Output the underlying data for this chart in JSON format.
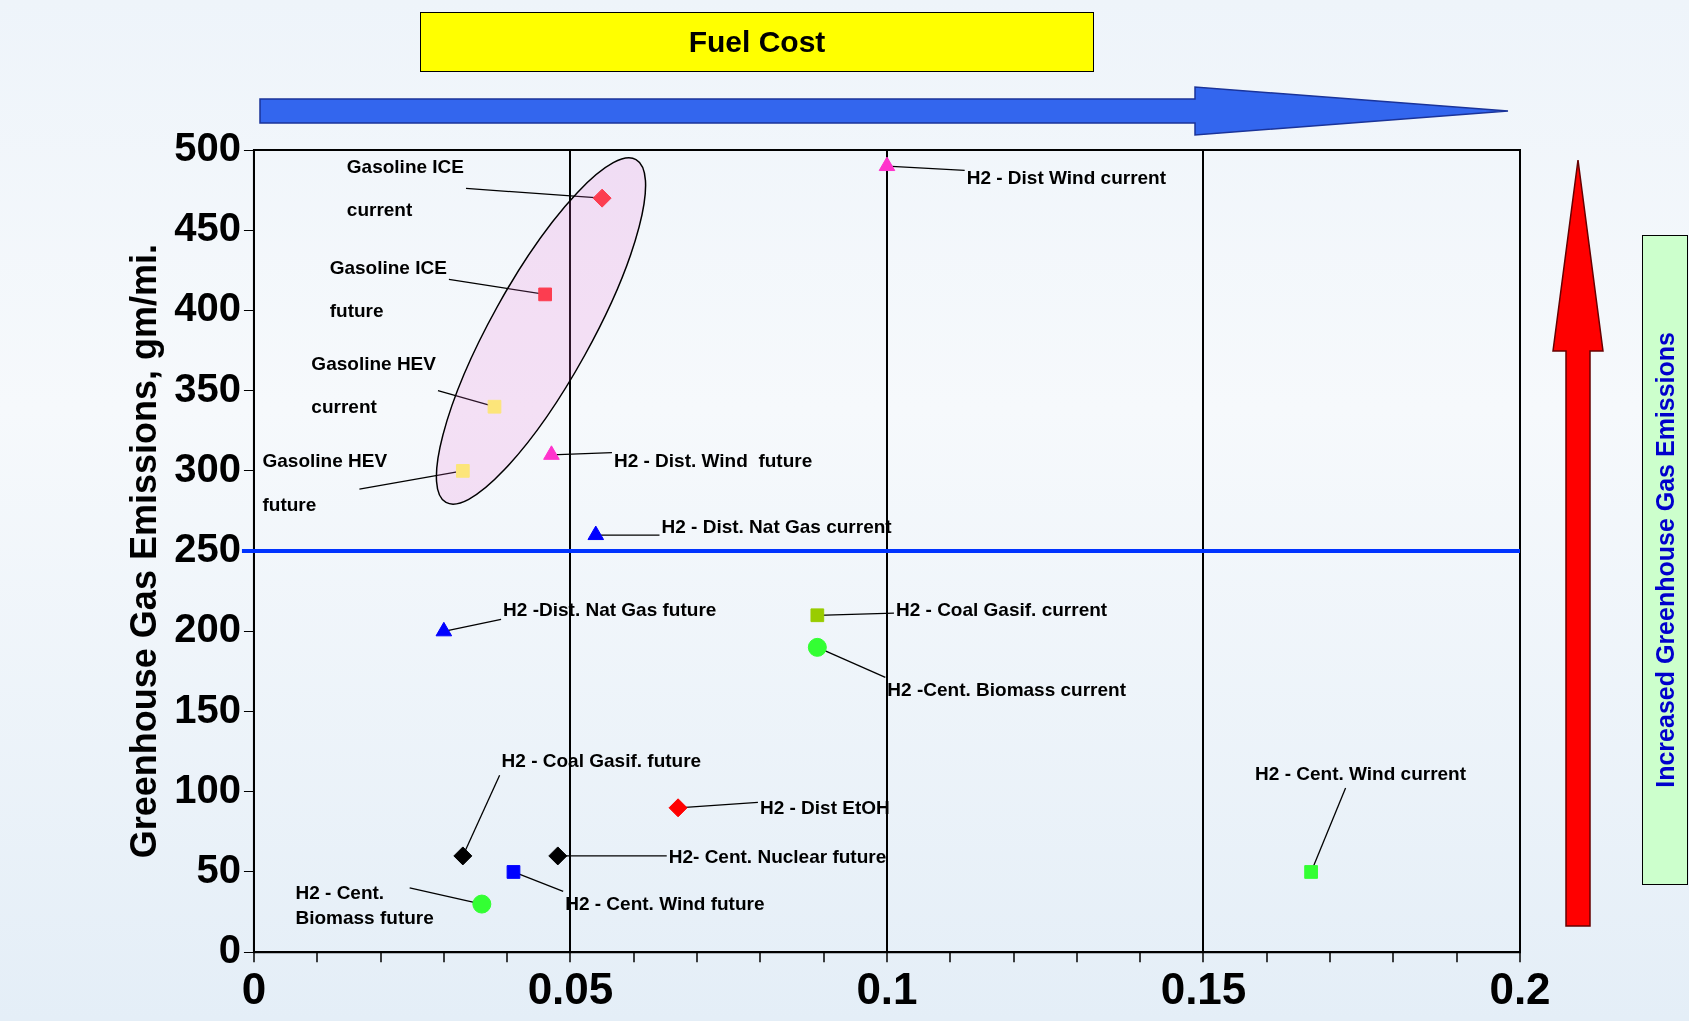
{
  "chart_data": {
    "type": "scatter",
    "ylabel": "Greenhouse Gas Emissions, gm/mi.",
    "xlim": [
      0,
      0.2
    ],
    "ylim": [
      0,
      500
    ],
    "xticks": [
      0,
      {
        "value": 0.01,
        "label": null
      },
      {
        "value": 0.02,
        "label": null
      },
      {
        "value": 0.03,
        "label": null
      },
      {
        "value": 0.04,
        "label": null
      },
      0.05,
      {
        "value": 0.06,
        "label": null
      },
      {
        "value": 0.07,
        "label": null
      },
      {
        "value": 0.08,
        "label": null
      },
      {
        "value": 0.09,
        "label": null
      },
      0.1,
      {
        "value": 0.11,
        "label": null
      },
      {
        "value": 0.12,
        "label": null
      },
      {
        "value": 0.13,
        "label": null
      },
      {
        "value": 0.14,
        "label": null
      },
      0.15,
      {
        "value": 0.16,
        "label": null
      },
      {
        "value": 0.17,
        "label": null
      },
      {
        "value": 0.18,
        "label": null
      },
      {
        "value": 0.19,
        "label": null
      },
      0.2
    ],
    "yticks": [
      0,
      50,
      100,
      150,
      200,
      250,
      300,
      350,
      400,
      450,
      500
    ],
    "grid": "x",
    "legend": false,
    "series": [
      {
        "color": "#ff3333",
        "marker": "diamond",
        "x": [
          0.055
        ],
        "values": [
          470
        ]
      },
      {
        "color": "#ff3333",
        "marker": "square",
        "x": [
          0.046
        ],
        "values": [
          410
        ]
      },
      {
        "color": "#ffff66",
        "marker": "square",
        "x": [
          0.038
        ],
        "values": [
          340
        ]
      },
      {
        "color": "#ffff66",
        "marker": "square",
        "x": [
          0.033
        ],
        "values": [
          300
        ]
      },
      {
        "color": "#ff33cc",
        "marker": "triangle",
        "x": [
          0.047
        ],
        "values": [
          310
        ]
      },
      {
        "color": "#ff33cc",
        "marker": "triangle",
        "x": [
          0.1
        ],
        "values": [
          490
        ]
      },
      {
        "color": "#0000ff",
        "marker": "triangle",
        "x": [
          0.054
        ],
        "values": [
          260
        ]
      },
      {
        "color": "#0000ff",
        "marker": "triangle",
        "x": [
          0.03
        ],
        "values": [
          200
        ]
      },
      {
        "color": "#99cc00",
        "marker": "square",
        "x": [
          0.089
        ],
        "values": [
          210
        ]
      },
      {
        "color": "#33ff33",
        "marker": "circle",
        "x": [
          0.089
        ],
        "values": [
          190
        ]
      },
      {
        "color": "#ff0000",
        "marker": "diamond",
        "x": [
          0.067
        ],
        "values": [
          90
        ]
      },
      {
        "color": "#000000",
        "marker": "diamond",
        "x": [
          0.033
        ],
        "values": [
          60
        ]
      },
      {
        "color": "#000000",
        "marker": "diamond",
        "x": [
          0.048
        ],
        "values": [
          60
        ]
      },
      {
        "color": "#0000ff",
        "marker": "square",
        "x": [
          0.041
        ],
        "values": [
          50
        ]
      },
      {
        "color": "#33ff33",
        "marker": "circle",
        "x": [
          0.036
        ],
        "values": [
          30
        ]
      },
      {
        "color": "#33ff33",
        "marker": "square",
        "x": [
          0.167
        ],
        "values": [
          50
        ]
      }
    ],
    "ref_lines": [
      {
        "axis": "y",
        "value": 250,
        "color": "#0033ff"
      }
    ],
    "annotations": [
      "Fuel Cost",
      "Increased Greenhouse Gas Emissions",
      {
        "text": "Gasoline ICE current",
        "x": 0.055,
        "y": 470
      },
      {
        "text": "Gasoline ICE future",
        "x": 0.046,
        "y": 410
      },
      {
        "text": "Gasoline HEV current",
        "x": 0.038,
        "y": 340
      },
      {
        "text": "Gasoline HEV future",
        "x": 0.033,
        "y": 300
      },
      "H2 - Dist. Wind  future",
      "H2 - Dist Wind current",
      "H2 - Dist. Nat Gas current",
      {
        "text": "H2 -Dist. Nat Gas future",
        "x": 0.03,
        "y": 200
      },
      "H2 - Coal Gasif. current",
      {
        "text": "H2 -Cent. Biomass current",
        "x": 0.089,
        "y": 190
      },
      "H2 - Dist EtOH",
      {
        "text": "H2 - Coal Gasif. future",
        "x": 0.033,
        "y": 60
      },
      {
        "text": "H2- Cent. Nuclear future",
        "x": 0.048,
        "y": 60
      },
      {
        "text": "H2 - Cent. Wind future",
        "x": 0.041,
        "y": 50
      },
      {
        "text": "H2 - Cent. Biomass future",
        "x": 0.036,
        "y": 30
      },
      {
        "text": "H2 - Cent. Wind current",
        "x": 0.167,
        "y": 50
      }
    ]
  }
}
